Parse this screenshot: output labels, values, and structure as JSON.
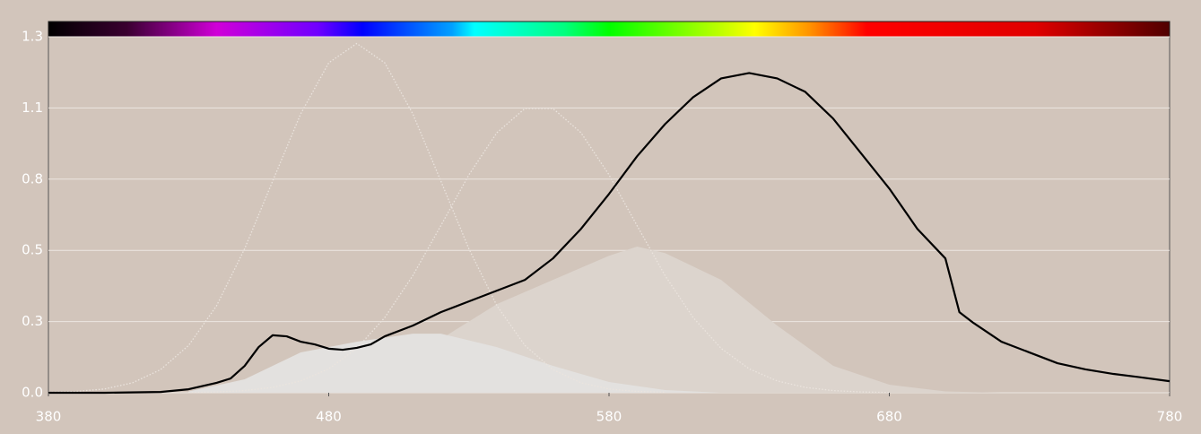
{
  "chart_data": {
    "type": "line",
    "xlim": [
      380,
      780
    ],
    "xticks": [
      380,
      480,
      580,
      680,
      780
    ],
    "ylim": [
      0,
      1.325
    ],
    "yticks": [
      {
        "value": 0,
        "label": "0.0"
      },
      {
        "value": 0.265,
        "label": "0.3"
      },
      {
        "value": 0.53,
        "label": "0.5"
      },
      {
        "value": 0.795,
        "label": "0.8"
      },
      {
        "value": 1.06,
        "label": "1.1"
      },
      {
        "value": 1.325,
        "label": "1.3"
      }
    ],
    "grid": true,
    "series": [
      {
        "style": "area",
        "color": "#dcd4cd",
        "x": [
          440,
          460,
          480,
          500,
          520,
          540,
          560,
          580,
          590,
          600,
          620,
          640,
          660,
          680,
          700,
          720
        ],
        "values": [
          0.005,
          0.02,
          0.05,
          0.1,
          0.2,
          0.33,
          0.42,
          0.51,
          0.544,
          0.52,
          0.42,
          0.25,
          0.1,
          0.03,
          0.005,
          0
        ]
      },
      {
        "style": "area",
        "color": "#e3e1df",
        "x": [
          430,
          450,
          470,
          490,
          510,
          520,
          540,
          560,
          580,
          600,
          620
        ],
        "values": [
          0.005,
          0.05,
          0.15,
          0.19,
          0.22,
          0.22,
          0.17,
          0.1,
          0.04,
          0.01,
          0
        ]
      },
      {
        "style": "dotted",
        "color": "#ebe4de",
        "x": [
          380,
          390,
          400,
          410,
          420,
          430,
          440,
          450,
          460,
          470,
          480,
          490,
          500,
          510,
          520,
          530,
          540,
          550,
          560,
          570,
          580,
          590,
          600
        ],
        "values": [
          0.002,
          0.005,
          0.014,
          0.037,
          0.086,
          0.176,
          0.324,
          0.536,
          0.788,
          1.038,
          1.228,
          1.3,
          1.228,
          1.038,
          0.788,
          0.536,
          0.324,
          0.176,
          0.086,
          0.037,
          0.014,
          0.005,
          0.002
        ]
      },
      {
        "style": "dotted",
        "color": "#ebe4de",
        "x": [
          430,
          440,
          450,
          460,
          470,
          480,
          490,
          500,
          510,
          520,
          530,
          540,
          550,
          560,
          570,
          580,
          590,
          600,
          610,
          620,
          630,
          640,
          650,
          660,
          670,
          680
        ],
        "values": [
          0.001,
          0.003,
          0.008,
          0.02,
          0.044,
          0.089,
          0.165,
          0.28,
          0.436,
          0.622,
          0.811,
          0.968,
          1.058,
          1.058,
          0.968,
          0.811,
          0.622,
          0.436,
          0.28,
          0.165,
          0.089,
          0.044,
          0.02,
          0.008,
          0.003,
          0.001
        ]
      },
      {
        "style": "solid",
        "color": "#000000",
        "x": [
          380,
          400,
          420,
          430,
          440,
          445,
          450,
          455,
          460,
          465,
          470,
          475,
          480,
          485,
          490,
          495,
          500,
          510,
          520,
          530,
          540,
          550,
          560,
          570,
          580,
          590,
          600,
          610,
          620,
          630,
          640,
          650,
          660,
          670,
          680,
          690,
          700,
          705,
          710,
          720,
          730,
          740,
          750,
          760,
          770,
          780
        ],
        "values": [
          0,
          0,
          0.003,
          0.013,
          0.037,
          0.053,
          0.1,
          0.17,
          0.214,
          0.21,
          0.19,
          0.18,
          0.164,
          0.16,
          0.167,
          0.18,
          0.21,
          0.25,
          0.3,
          0.34,
          0.38,
          0.42,
          0.5,
          0.61,
          0.74,
          0.88,
          1.0,
          1.1,
          1.17,
          1.19,
          1.17,
          1.12,
          1.02,
          0.89,
          0.76,
          0.61,
          0.5,
          0.3,
          0.26,
          0.19,
          0.15,
          0.11,
          0.087,
          0.07,
          0.057,
          0.043
        ]
      }
    ]
  }
}
